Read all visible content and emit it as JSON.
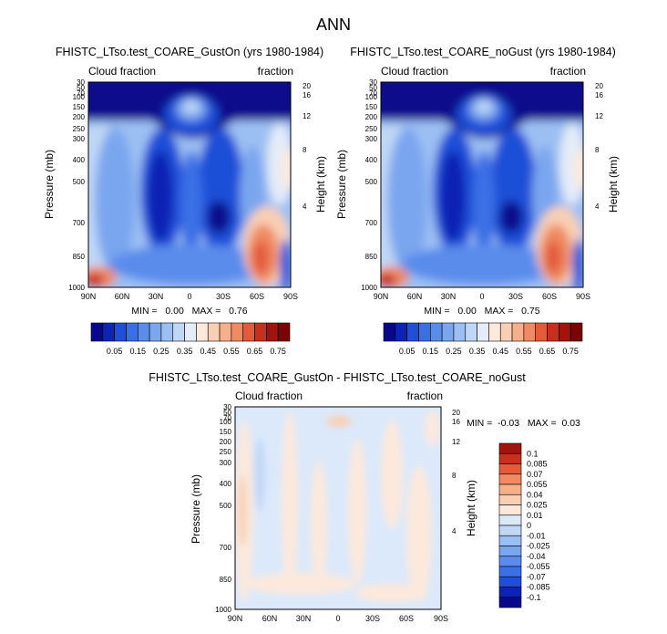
{
  "figure_title": "ANN",
  "colors": {
    "full_palette": [
      "#08088c",
      "#0d23b4",
      "#1f4fd8",
      "#3a6fe6",
      "#5a8cec",
      "#7aa6ef",
      "#9cbff3",
      "#c0d7f6",
      "#e4ecf8",
      "#fde9dc",
      "#f9cfb4",
      "#f5b08a",
      "#ef8a62",
      "#e25c3c",
      "#c7301d",
      "#a0140c",
      "#7a0403"
    ],
    "diff_palette": [
      "#08088c",
      "#0d23b4",
      "#1f4fd8",
      "#3a6fe6",
      "#5a8cec",
      "#7aa6ef",
      "#9cbff3",
      "#c0d7f6",
      "#dbe9fb",
      "#fde9dc",
      "#f9cfb4",
      "#f5b08a",
      "#ef8a62",
      "#e25c3c",
      "#c7301d",
      "#a0140c"
    ]
  },
  "chart_data": [
    {
      "type": "heatmap",
      "title": "FHISTC_LTso.test_COARE_GustOn (yrs 1980-1984)",
      "left_string": "Cloud fraction",
      "right_string": "fraction",
      "ylabel": "Pressure (mb)",
      "ylabel_right": "Height (km)",
      "x_ticks": [
        "90N",
        "60N",
        "30N",
        "0",
        "30S",
        "60S",
        "90S"
      ],
      "y_ticks": [
        "30",
        "50",
        "70",
        "100",
        "150",
        "200",
        "250",
        "300",
        "400",
        "500",
        "700",
        "850",
        "1000"
      ],
      "height_ticks": [
        "20",
        "16",
        "12",
        "8",
        "4"
      ],
      "stats": "MIN =   0.00   MAX =   0.76",
      "min": 0.0,
      "max": 0.76,
      "colorbar_labels": [
        "0.05",
        "0.15",
        "0.25",
        "0.35",
        "0.45",
        "0.55",
        "0.65",
        "0.75"
      ]
    },
    {
      "type": "heatmap",
      "title": "FHISTC_LTso.test_COARE_noGust (yrs 1980-1984)",
      "left_string": "Cloud fraction",
      "right_string": "fraction",
      "ylabel": "Pressure (mb)",
      "ylabel_right": "Height (km)",
      "x_ticks": [
        "90N",
        "60N",
        "30N",
        "0",
        "30S",
        "60S",
        "90S"
      ],
      "y_ticks": [
        "30",
        "50",
        "70",
        "100",
        "150",
        "200",
        "250",
        "300",
        "400",
        "500",
        "700",
        "850",
        "1000"
      ],
      "height_ticks": [
        "20",
        "16",
        "12",
        "8",
        "4"
      ],
      "stats": "MIN =   0.00   MAX =   0.75",
      "min": 0.0,
      "max": 0.75,
      "colorbar_labels": [
        "0.05",
        "0.15",
        "0.25",
        "0.35",
        "0.45",
        "0.55",
        "0.65",
        "0.75"
      ]
    },
    {
      "type": "heatmap",
      "title": "FHISTC_LTso.test_COARE_GustOn - FHISTC_LTso.test_COARE_noGust",
      "left_string": "Cloud fraction",
      "right_string": "fraction",
      "ylabel": "Pressure (mb)",
      "ylabel_right": "Height (km)",
      "x_ticks": [
        "90N",
        "60N",
        "30N",
        "0",
        "30S",
        "60S",
        "90S"
      ],
      "y_ticks": [
        "30",
        "50",
        "70",
        "100",
        "150",
        "200",
        "250",
        "300",
        "400",
        "500",
        "700",
        "850",
        "1000"
      ],
      "height_ticks": [
        "20",
        "16",
        "12",
        "8",
        "4"
      ],
      "stats": "MIN =  -0.03   MAX =  0.03",
      "min": -0.03,
      "max": 0.03,
      "colorbar_labels": [
        "0.1",
        "0.085",
        "0.07",
        "0.055",
        "0.04",
        "0.025",
        "0.01",
        "0",
        "-0.01",
        "-0.025",
        "-0.04",
        "-0.055",
        "-0.07",
        "-0.085",
        "-0.1"
      ]
    }
  ]
}
